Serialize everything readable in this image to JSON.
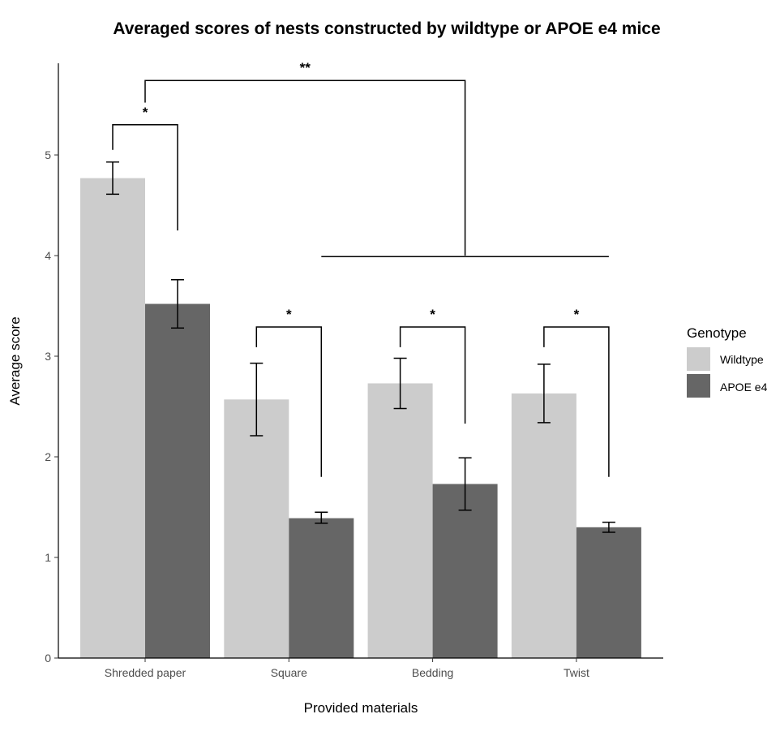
{
  "chart_data": {
    "type": "bar",
    "title": "Averaged scores of nests constructed by wildtype or APOE e4 mice",
    "xlabel": "Provided materials",
    "ylabel": "Average score",
    "ylim": [
      0,
      5.8
    ],
    "yticks": [
      0,
      1,
      2,
      3,
      4,
      5
    ],
    "categories": [
      "Shredded paper",
      "Square",
      "Bedding",
      "Twist"
    ],
    "series": [
      {
        "name": "Wildtype",
        "color": "#cccccc",
        "values": [
          4.77,
          2.57,
          2.73,
          2.63
        ],
        "err_low": [
          4.61,
          2.21,
          2.48,
          2.34
        ],
        "err_high": [
          4.93,
          2.93,
          2.98,
          2.92
        ]
      },
      {
        "name": "APOE e4",
        "color": "#666666",
        "values": [
          3.52,
          1.39,
          1.73,
          1.3
        ],
        "err_low": [
          3.28,
          1.34,
          1.47,
          1.25
        ],
        "err_high": [
          3.76,
          1.45,
          1.99,
          1.35
        ]
      }
    ],
    "legend": {
      "title": "Genotype",
      "position": "right"
    },
    "annotations": [
      {
        "label": "*",
        "x1": "Shredded paper:Wildtype",
        "x2": "Shredded paper:APOE e4",
        "y_top": 5.3,
        "y_left": 5.05,
        "y_right": 4.25
      },
      {
        "label": "*",
        "x1": "Square:Wildtype",
        "x2": "Square:APOE e4",
        "y_top": 3.29,
        "y_left": 3.09,
        "y_right": 1.8
      },
      {
        "label": "*",
        "x1": "Bedding:Wildtype",
        "x2": "Bedding:APOE e4",
        "y_top": 3.29,
        "y_left": 3.09,
        "y_right": 2.33
      },
      {
        "label": "*",
        "x1": "Twist:Wildtype",
        "x2": "Twist:APOE e4",
        "y_top": 3.29,
        "y_left": 3.09,
        "y_right": 1.8
      },
      {
        "label": "**",
        "x1": "Shredded paper",
        "x2": "Bedding:APOE e4",
        "y_top": 5.74,
        "y_left": 5.52,
        "y_right": 4.0,
        "bar_from": "Square:APOE e4",
        "bar_to": "Twist:APOE e4",
        "bar_y": 3.99
      }
    ]
  }
}
